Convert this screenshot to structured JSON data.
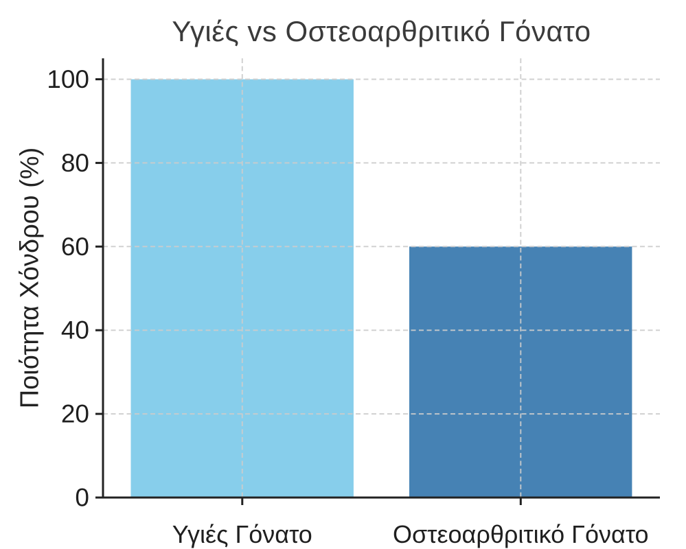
{
  "chart_data": {
    "type": "bar",
    "title": "Υγιές vs Οστεοαρθριτικό Γόνατο",
    "xlabel": "",
    "ylabel": "Ποιότητα Χόνδρου (%)",
    "categories": [
      "Υγιές Γόνατο",
      "Οστεοαρθριτικό Γόνατο"
    ],
    "values": [
      100,
      60
    ],
    "bar_colors": [
      "#87CEEB",
      "#4682B4"
    ],
    "ylim": [
      0,
      105
    ],
    "yticks": [
      0,
      20,
      40,
      60,
      80,
      100
    ],
    "bar_width_fraction": 0.8,
    "grid": "dashed horizontal and vertical gridlines drawn over bars",
    "legend": "none",
    "spines": "left and bottom only, outward ticks"
  },
  "style": {
    "background": "#ffffff",
    "grid_color": "#cccccc",
    "grid_opacity": 0.9,
    "axis_color": "#222222",
    "tick_text_color": "#1f1f1f",
    "title_color": "#3a3a3a"
  }
}
